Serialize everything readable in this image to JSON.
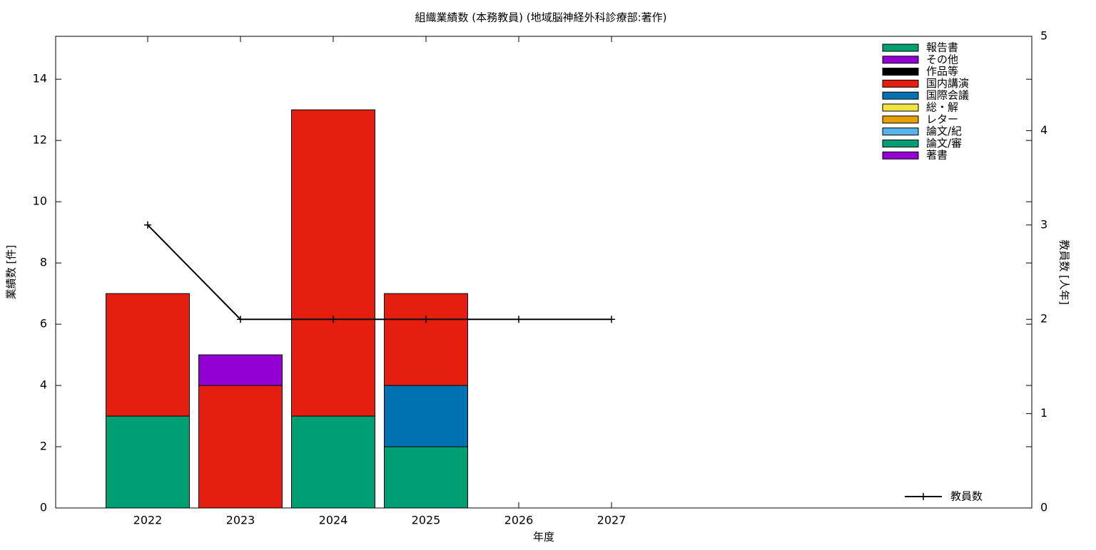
{
  "chart_data": {
    "type": "bar",
    "title": "組織業績数 (本務教員) (地域脳神経外科診療部:著作)",
    "x_label": "年度",
    "y_label": "業績数 [件]",
    "y2_label": "教員数 [人年]",
    "categories": [
      "2022",
      "2023",
      "2024",
      "2025",
      "2026",
      "2027"
    ],
    "stacked": true,
    "series": [
      {
        "name": "報告書",
        "color": "#009e73",
        "values": [
          0,
          0,
          0,
          0,
          0,
          0
        ]
      },
      {
        "name": "その他",
        "color": "#9400d3",
        "values": [
          0,
          1,
          0,
          0,
          0,
          0
        ]
      },
      {
        "name": "作品等",
        "color": "#000000",
        "values": [
          0,
          0,
          0,
          0,
          0,
          0
        ]
      },
      {
        "name": "国内講演",
        "color": "#e51e10",
        "values": [
          4,
          4,
          10,
          3,
          0,
          0
        ]
      },
      {
        "name": "国際会議",
        "color": "#0072b2",
        "values": [
          0,
          0,
          0,
          2,
          0,
          0
        ]
      },
      {
        "name": "総・解",
        "color": "#f0e442",
        "values": [
          0,
          0,
          0,
          0,
          0,
          0
        ]
      },
      {
        "name": "レター",
        "color": "#e69f00",
        "values": [
          0,
          0,
          0,
          0,
          0,
          0
        ]
      },
      {
        "name": "論文/紀",
        "color": "#56b4e9",
        "values": [
          0,
          0,
          0,
          0,
          0,
          0
        ]
      },
      {
        "name": "論文/審",
        "color": "#009e73",
        "values": [
          3,
          0,
          3,
          2,
          0,
          0
        ]
      },
      {
        "name": "著書",
        "color": "#9400d3",
        "values": [
          0,
          0,
          0,
          0,
          0,
          0
        ]
      },
      {
        "name": "教員数",
        "color": "#000000",
        "axis": "y2",
        "values": [
          3,
          2,
          2,
          2,
          2,
          2
        ]
      }
    ],
    "ylim": [
      0,
      15.4
    ],
    "yticks": [
      0,
      2,
      4,
      6,
      8,
      10,
      12,
      14
    ],
    "y2lim": [
      0,
      5
    ],
    "y2ticks": [
      0,
      1,
      2,
      3,
      4,
      5
    ],
    "grid": false,
    "legend": "upper right"
  }
}
